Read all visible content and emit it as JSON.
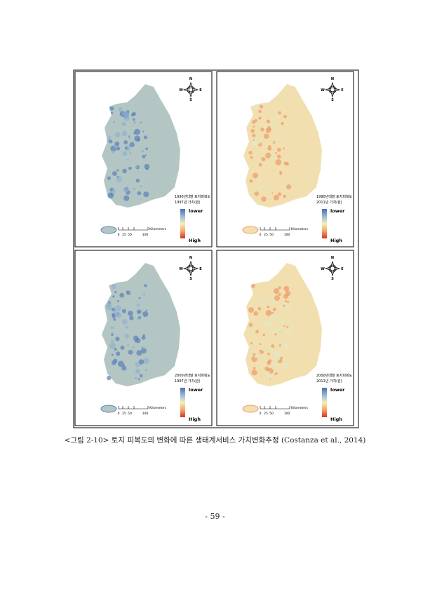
{
  "figure": {
    "panels": [
      {
        "compass": {
          "n": "N",
          "s": "S",
          "w": "W",
          "e": "E"
        },
        "legend_title": "1990년대말 토지피복도",
        "legend_subtitle": "1997년 가치(원)",
        "legend_low": "lower",
        "legend_high": "High",
        "scale_unit": "Kilometers",
        "scale_ticks": [
          0,
          25,
          50,
          100
        ]
      },
      {
        "compass": {
          "n": "N",
          "s": "S",
          "w": "W",
          "e": "E"
        },
        "legend_title": "1990년대말 토지피복도",
        "legend_subtitle": "2011년 가치(원)",
        "legend_low": "lower",
        "legend_high": "High",
        "scale_unit": "Kilometers",
        "scale_ticks": [
          0,
          25,
          50,
          100
        ]
      },
      {
        "compass": {
          "n": "N",
          "s": "S",
          "w": "W",
          "e": "E"
        },
        "legend_title": "2000년대말 토지피복도",
        "legend_subtitle": "1997년 가치(원)",
        "legend_low": "lower",
        "legend_high": "High",
        "scale_unit": "Kilometers",
        "scale_ticks": [
          0,
          25,
          50,
          100
        ]
      },
      {
        "compass": {
          "n": "N",
          "s": "S",
          "w": "W",
          "e": "E"
        },
        "legend_title": "2000년대말 토지피복도",
        "legend_subtitle": "2011년 가치(원)",
        "legend_low": "lower",
        "legend_high": "High",
        "scale_unit": "Kilometers",
        "scale_ticks": [
          0,
          25,
          50,
          100
        ]
      }
    ],
    "caption": "<그림 2-10> 토지 피복도의 변화에 따른 생태계서비스 가치변화추정 (Costanza et al., 2014)"
  },
  "page_number": "- 59 -"
}
